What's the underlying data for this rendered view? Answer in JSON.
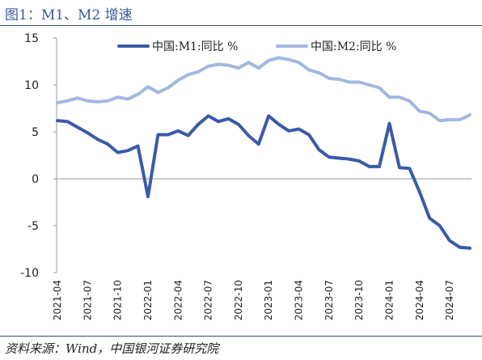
{
  "header": {
    "title": "图1：M1、M2 增速"
  },
  "footer": {
    "source": "资料来源：Wind，中国银河证券研究院"
  },
  "chart_data": {
    "type": "line",
    "title": "",
    "xlabel": "",
    "ylabel": "",
    "ylim": [
      -10,
      15
    ],
    "yticks": [
      15,
      10,
      5,
      0,
      -5,
      -10
    ],
    "ytick_labels": [
      "15",
      "10",
      "5",
      "0",
      "-5",
      "-10"
    ],
    "grid": false,
    "legend_position": "top",
    "x": [
      "2021-04",
      "2021-05",
      "2021-06",
      "2021-07",
      "2021-08",
      "2021-09",
      "2021-10",
      "2021-11",
      "2021-12",
      "2022-01",
      "2022-02",
      "2022-03",
      "2022-04",
      "2022-05",
      "2022-06",
      "2022-07",
      "2022-08",
      "2022-09",
      "2022-10",
      "2022-11",
      "2022-12",
      "2023-01",
      "2023-02",
      "2023-03",
      "2023-04",
      "2023-05",
      "2023-06",
      "2023-07",
      "2023-08",
      "2023-09",
      "2023-10",
      "2023-11",
      "2023-12",
      "2024-01",
      "2024-02",
      "2024-03",
      "2024-04",
      "2024-05",
      "2024-06",
      "2024-07",
      "2024-08",
      "2024-09"
    ],
    "xtick_labels": [
      "2021-04",
      "2021-07",
      "2021-10",
      "2022-01",
      "2022-04",
      "2022-07",
      "2022-10",
      "2023-01",
      "2023-04",
      "2023-07",
      "2023-10",
      "2024-01",
      "2024-04",
      "2024-07"
    ],
    "series": [
      {
        "name": "中国:M1:同比 %",
        "color": "#3a5ba8",
        "values": [
          6.2,
          6.1,
          5.5,
          4.9,
          4.2,
          3.7,
          2.8,
          3.0,
          3.5,
          -1.9,
          4.7,
          4.7,
          5.1,
          4.6,
          5.8,
          6.7,
          6.1,
          6.4,
          5.8,
          4.6,
          3.7,
          6.7,
          5.8,
          5.1,
          5.3,
          4.7,
          3.1,
          2.3,
          2.2,
          2.1,
          1.9,
          1.3,
          1.3,
          5.9,
          1.2,
          1.1,
          -1.4,
          -4.2,
          -5.0,
          -6.6,
          -7.3,
          -7.4
        ]
      },
      {
        "name": "中国:M2:同比 %",
        "color": "#a3b8e0",
        "values": [
          8.1,
          8.3,
          8.6,
          8.3,
          8.2,
          8.3,
          8.7,
          8.5,
          9.0,
          9.8,
          9.2,
          9.7,
          10.5,
          11.1,
          11.4,
          12.0,
          12.2,
          12.1,
          11.8,
          12.4,
          11.8,
          12.6,
          12.9,
          12.7,
          12.4,
          11.6,
          11.3,
          10.7,
          10.6,
          10.3,
          10.3,
          10.0,
          9.7,
          8.7,
          8.7,
          8.3,
          7.2,
          7.0,
          6.2,
          6.3,
          6.3,
          6.8
        ]
      }
    ]
  }
}
